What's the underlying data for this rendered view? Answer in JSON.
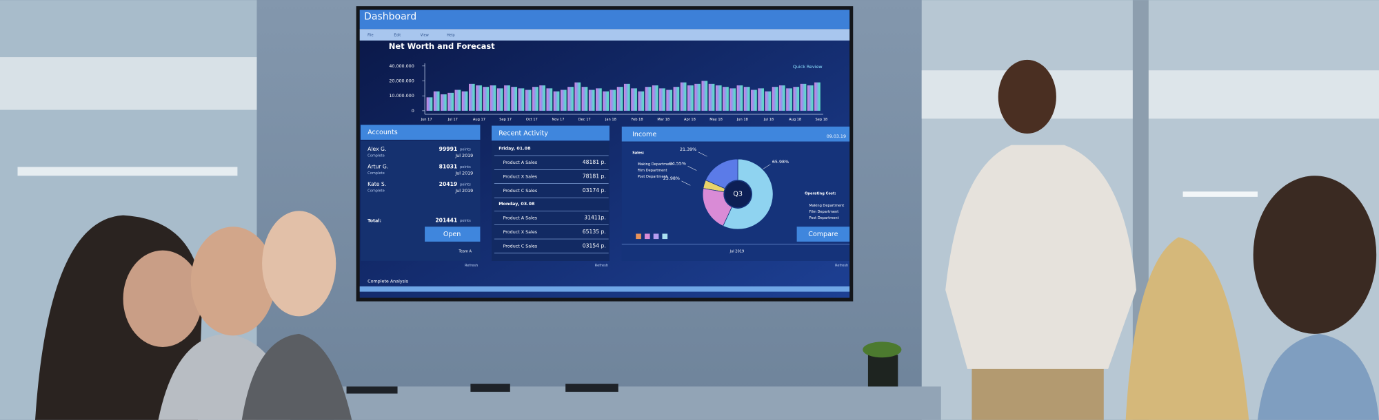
{
  "screen": {
    "title": "Dashboard",
    "menu": [
      "File",
      "Edit",
      "View",
      "Help"
    ],
    "chart": {
      "type": "bar",
      "title": "Net Worth and Forecast",
      "link": "Quick Review",
      "ylim": [
        0,
        40000000
      ],
      "yticks": [
        {
          "value": 40000000,
          "label": "40.000.000"
        },
        {
          "value": 20000000,
          "label": "20.000.000"
        },
        {
          "value": 10000000,
          "label": "10.000.000"
        },
        0
      ],
      "xlabels": [
        "Jun 17",
        "Jul 17",
        "Aug 17",
        "Sep 17",
        "Oct 17",
        "Nov 17",
        "Dec 17",
        "Jan 18",
        "Feb 18",
        "Mar 18",
        "Apr 18",
        "May 18",
        "Jun 18",
        "Jul 18",
        "Aug 18",
        "Sep 18"
      ],
      "values": [
        9000000,
        13000000,
        11000000,
        12000000,
        14000000,
        13000000,
        18000000,
        17000000,
        16000000,
        17000000,
        15000000,
        17000000,
        16000000,
        15000000,
        14000000,
        16000000,
        17000000,
        15000000,
        13000000,
        14000000,
        16000000,
        19000000,
        16000000,
        14000000,
        15000000,
        13000000,
        14000000,
        16000000,
        18000000,
        15000000,
        13000000,
        16000000,
        17000000,
        15000000,
        14000000,
        16000000,
        19000000,
        17000000,
        18000000,
        20000000,
        18000000,
        17000000,
        16000000,
        15000000,
        17000000,
        16000000,
        14000000,
        15000000,
        13000000,
        16000000,
        17000000,
        15000000,
        16000000,
        18000000,
        17000000,
        19000000
      ]
    },
    "accounts": {
      "title": "Accounts",
      "rows": [
        {
          "name": "Alex G.",
          "status": "Complete",
          "points": "99991",
          "unit": "points",
          "date": "Jul 2019"
        },
        {
          "name": "Artur G.",
          "status": "Complete",
          "points": "81031",
          "unit": "points",
          "date": "Jul 2019"
        },
        {
          "name": "Kate S.",
          "status": "Complete",
          "points": "20419",
          "unit": "points",
          "date": "Jul 2019"
        }
      ],
      "total_label": "Total:",
      "total": "201441",
      "total_unit": "points",
      "button": "Open",
      "team": "Team A",
      "refresh": "Refresh"
    },
    "activity": {
      "title": "Recent Activity",
      "groups": [
        {
          "day": "Friday, 01.08",
          "items": [
            [
              "Product A Sales",
              "48181 p."
            ],
            [
              "Product X Sales",
              "78181 p."
            ],
            [
              "Product C Sales",
              "03174 p."
            ]
          ]
        },
        {
          "day": "Monday, 03.08",
          "items": [
            [
              "Product A Sales",
              "31411p."
            ],
            [
              "Product X Sales",
              "65135 p."
            ],
            [
              "Product C Sales",
              "03154 p."
            ]
          ]
        }
      ],
      "refresh": "Refresh"
    },
    "income": {
      "title": "Income",
      "date": "09.03.19",
      "sales_label": "Sales:",
      "sales": [
        "Making Department",
        "Film Department",
        "Post Department"
      ],
      "donut": {
        "type": "pie",
        "center": "Q3",
        "values": [
          21.39,
          4.55,
          23.98,
          65.98
        ],
        "value_labels": [
          "21.39%",
          "04.55%",
          "23.98%",
          "65.98%"
        ],
        "colors": [
          "#5b7be8",
          "#e8d36a",
          "#d98bd6",
          "#8fd3f0"
        ]
      },
      "cost_label": "Operating Cost:",
      "cost": [
        "Making Department",
        "Film Department",
        "Post Department"
      ],
      "button": "Compare",
      "month": "Jul 2019",
      "refresh": "Refresh"
    },
    "footer": "Complete Analysis"
  }
}
